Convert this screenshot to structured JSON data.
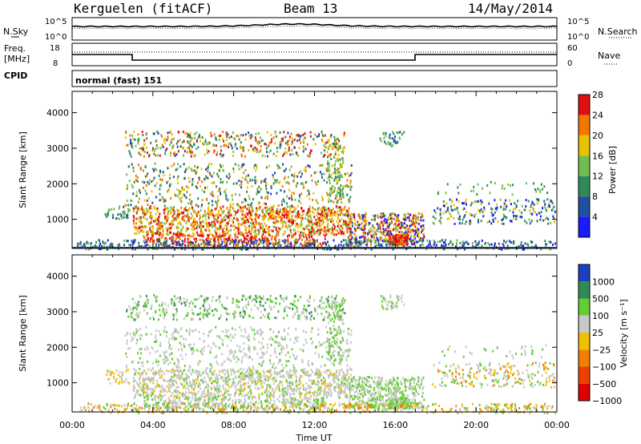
{
  "header": {
    "station": "Kerguelen (fitACF)",
    "beam": "Beam 13",
    "date": "14/May/2014"
  },
  "noise_panel": {
    "left_label": "N.Sky",
    "right_label": "N.Search",
    "ticks_left": [
      "10^5",
      "10^0"
    ],
    "ticks_right": [
      "10^5",
      "10^0"
    ]
  },
  "freq_panel": {
    "left_label_1": "Freq.",
    "left_label_2": "[MHz]",
    "right_label": "Nave",
    "ticks_left": [
      "18",
      "8"
    ],
    "ticks_right": [
      "60",
      "0"
    ]
  },
  "cpid": {
    "label": "CPID",
    "value": "normal (fast) 151"
  },
  "chart_data": [
    {
      "type": "heatmap",
      "name": "power",
      "ylabel": "Slant Range [km]",
      "ylim": [
        180,
        4600
      ],
      "yticks": [
        "1000",
        "2000",
        "3000",
        "4000"
      ],
      "colorbar_label": "Power [dB]",
      "colorbar_ticks": [
        "4",
        "8",
        "12",
        "16",
        "20",
        "24",
        "28"
      ],
      "colors": [
        "#1a1aff",
        "#1f4fa0",
        "#2e8b57",
        "#6fbf4f",
        "#e8c200",
        "#f07800",
        "#e01010"
      ]
    },
    {
      "type": "heatmap",
      "name": "velocity",
      "ylabel": "Slant Range [km]",
      "ylim": [
        180,
        4600
      ],
      "yticks": [
        "1000",
        "2000",
        "3000",
        "4000"
      ],
      "colorbar_label": "Velocity [m s⁻¹]",
      "colorbar_ticks": [
        "1000",
        "500",
        "100",
        "25",
        "−25",
        "−100",
        "−500",
        "−1000"
      ],
      "colors": [
        "#1a3fbf",
        "#2e8b57",
        "#66cc33",
        "#c8c8c8",
        "#f0c000",
        "#f08000",
        "#f04000",
        "#e00000"
      ]
    }
  ],
  "time_axis": {
    "label": "Time UT",
    "ticks": [
      "00:00",
      "04:00",
      "08:00",
      "12:00",
      "16:00",
      "20:00",
      "00:00"
    ]
  }
}
